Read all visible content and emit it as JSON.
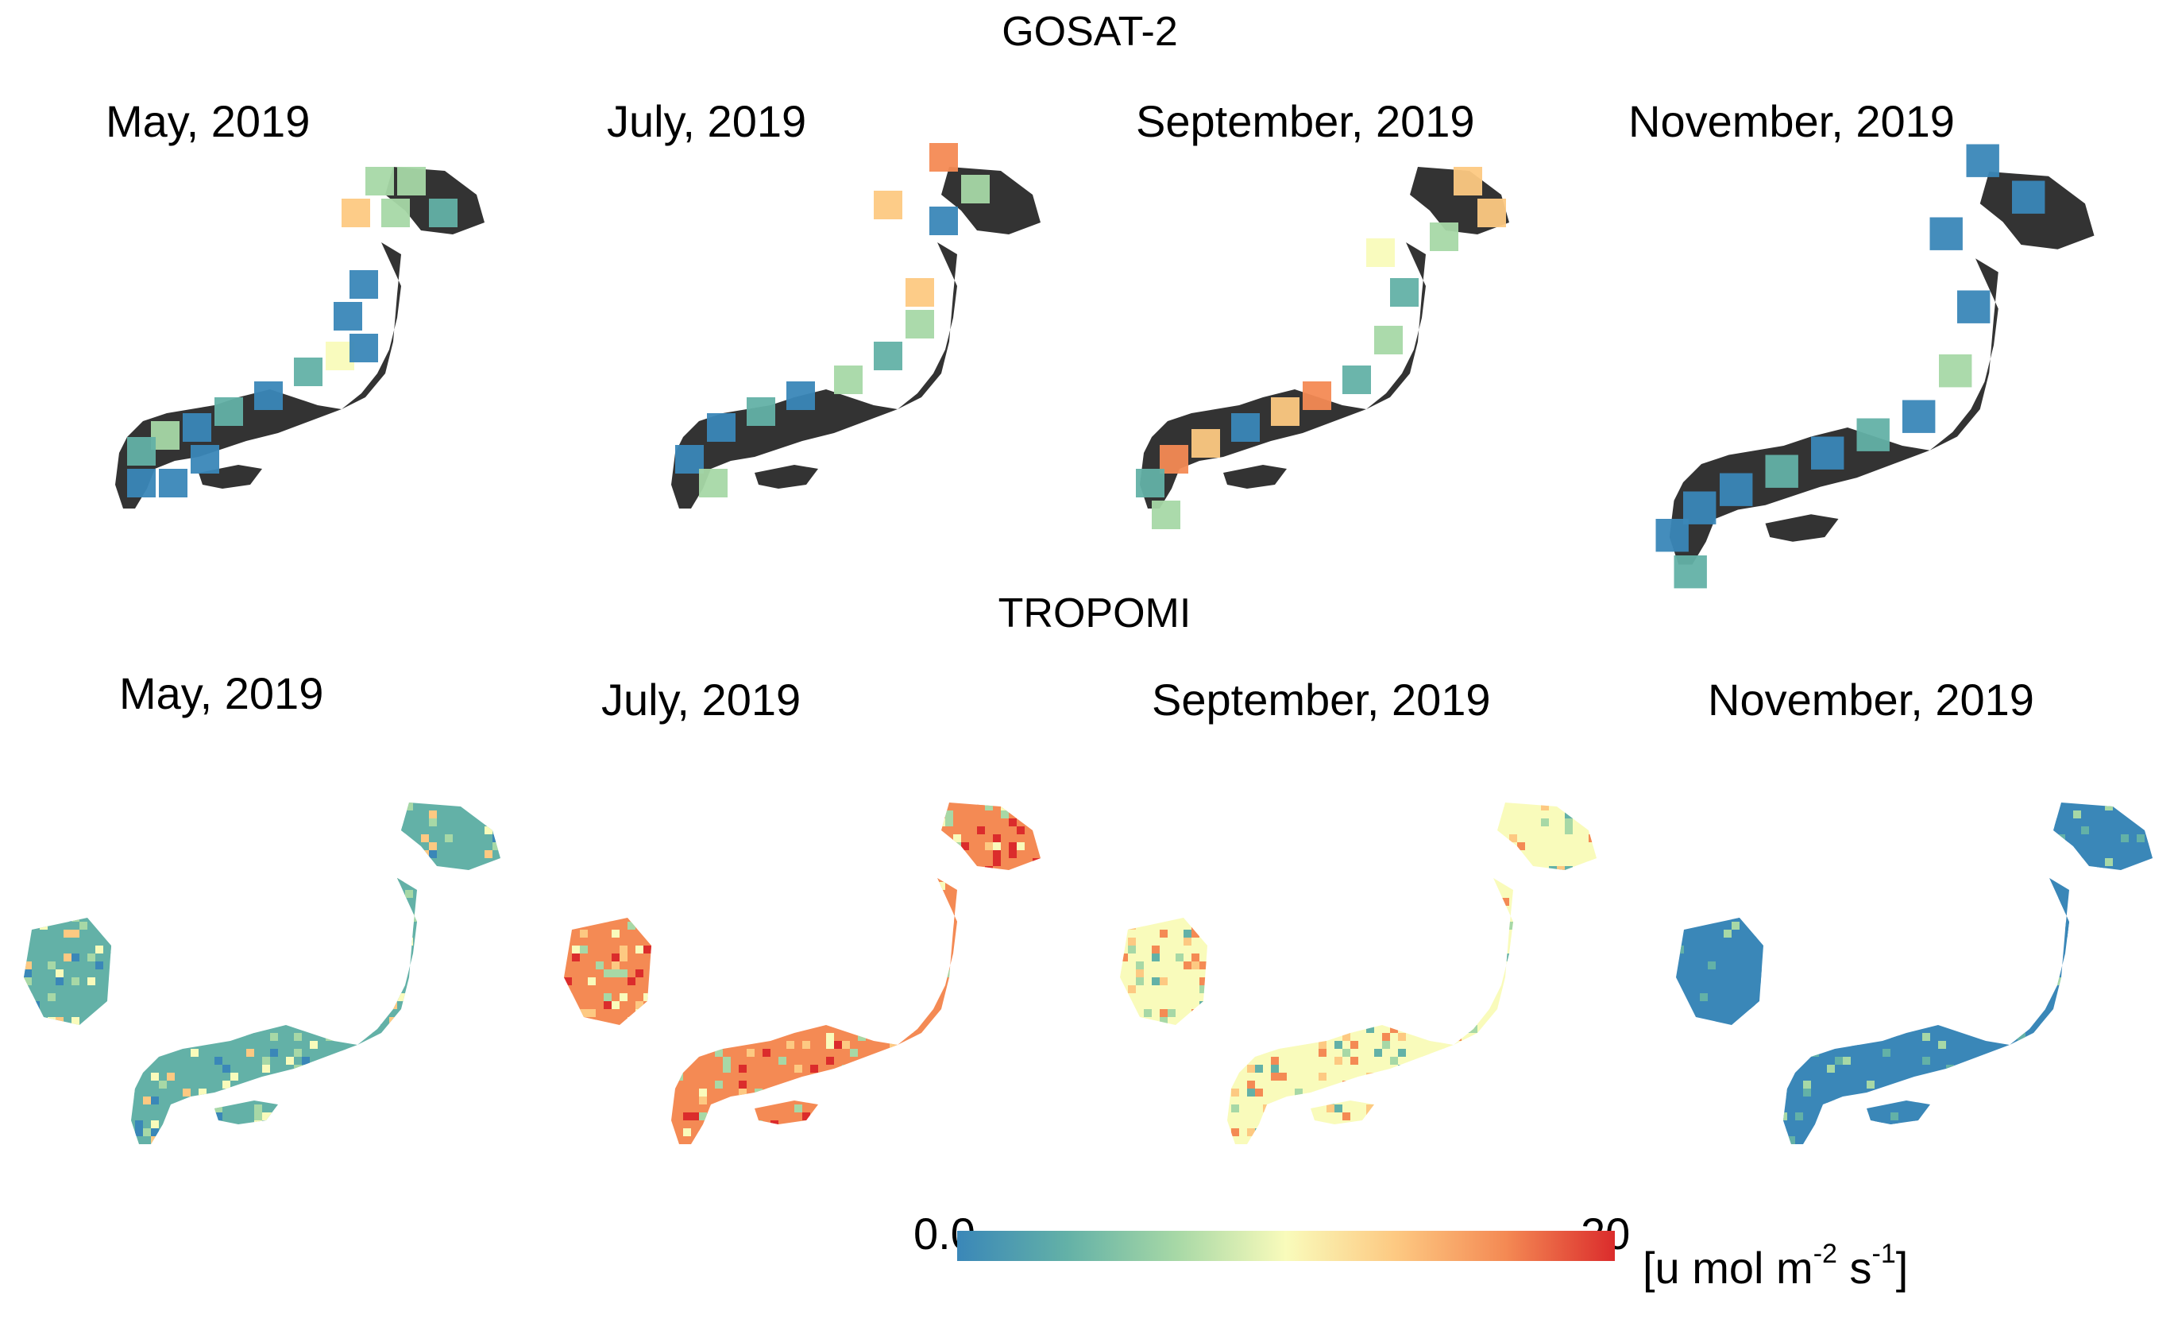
{
  "figure": {
    "rows": [
      {
        "title": "GOSAT-2",
        "panels": [
          {
            "title": "May, 2019"
          },
          {
            "title": "July, 2019"
          },
          {
            "title": "September, 2019"
          },
          {
            "title": "November, 2019"
          }
        ]
      },
      {
        "title": "TROPOMI",
        "panels": [
          {
            "title": "May, 2019"
          },
          {
            "title": "July, 2019"
          },
          {
            "title": "September, 2019"
          },
          {
            "title": "November, 2019"
          }
        ]
      }
    ],
    "colorbar": {
      "min_label": "0.0",
      "max_label": "20",
      "unit_main": "[u mol m",
      "unit_exp1": "-2",
      "unit_mid": " s",
      "unit_exp2": "-1",
      "unit_end": "]",
      "colors": [
        "#3a87b8",
        "#63b1a7",
        "#a7d8a6",
        "#f9fbbb",
        "#fdc982",
        "#f48a54",
        "#db2c2c"
      ]
    },
    "land_color": "#333333"
  }
}
